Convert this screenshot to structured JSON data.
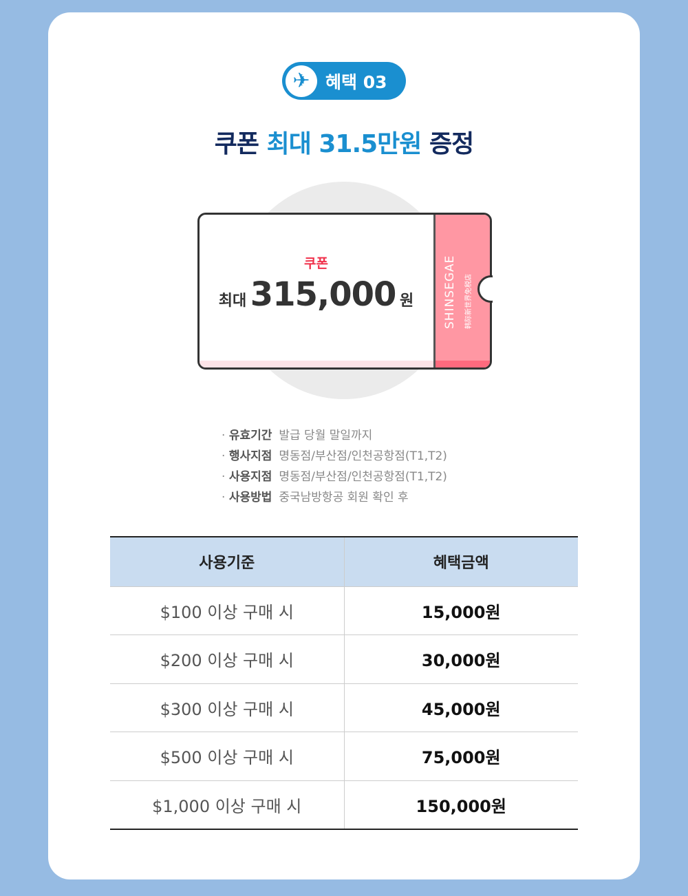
{
  "badge": {
    "icon": "airplane-icon",
    "label": "혜택 03"
  },
  "title": {
    "pre": "쿠폰",
    "highlight": "최대 31.5만원",
    "post": "증정"
  },
  "ticket": {
    "label": "쿠폰",
    "prefix": "최대",
    "amount": "315,000",
    "unit": "원",
    "brand": "SHINSEGAE",
    "brand_sub": "韩际新世界免税店"
  },
  "info": [
    {
      "key": "유효기간",
      "value": "발급 당월 말일까지"
    },
    {
      "key": "행사지점",
      "value": "명동점/부산점/인천공항점(T1,T2)"
    },
    {
      "key": "사용지점",
      "value": "명동점/부산점/인천공항점(T1,T2)"
    },
    {
      "key": "사용방법",
      "value": "중국남방항공 회원 확인 후"
    }
  ],
  "table": {
    "headers": [
      "사용기준",
      "혜택금액"
    ],
    "rows": [
      [
        "$100 이상 구매 시",
        "15,000원"
      ],
      [
        "$200 이상 구매 시",
        "30,000원"
      ],
      [
        "$300 이상 구매 시",
        "45,000원"
      ],
      [
        "$500 이상 구매 시",
        "75,000원"
      ],
      [
        "$1,000 이상 구매 시",
        "150,000원"
      ]
    ]
  },
  "colors": {
    "background": "#96bbe3",
    "accent": "#1a8fd0",
    "navy": "#132a5e",
    "coupon_red": "#f0304a",
    "stub_pink": "#ff97a3",
    "table_header": "#c9dcf0"
  }
}
